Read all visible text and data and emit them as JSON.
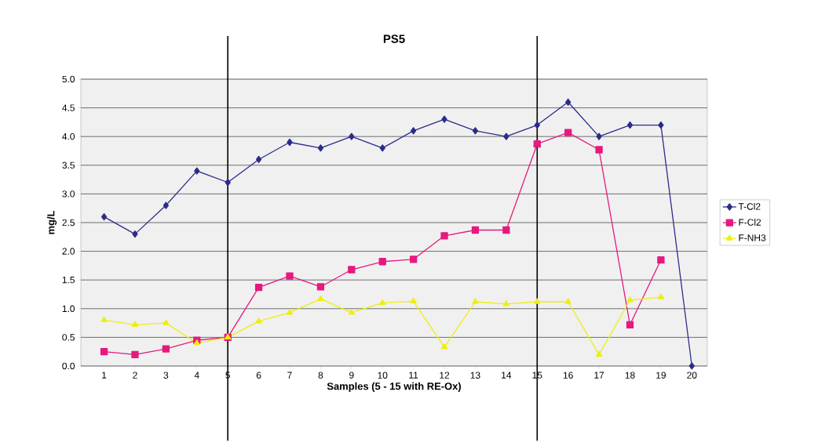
{
  "chart_data": {
    "type": "line",
    "title": "PS5",
    "xlabel": "Samples (5 - 15 with RE-Ox)",
    "ylabel": "mg/L",
    "x": [
      1,
      2,
      3,
      4,
      5,
      6,
      7,
      8,
      9,
      10,
      11,
      12,
      13,
      14,
      15,
      16,
      17,
      18,
      19,
      20
    ],
    "xlim": [
      0.25,
      20.5
    ],
    "xticks": [
      1,
      2,
      3,
      4,
      5,
      6,
      7,
      8,
      9,
      10,
      11,
      12,
      13,
      14,
      15,
      16,
      17,
      18,
      19,
      20
    ],
    "ylim": [
      0,
      5
    ],
    "yticks": [
      {
        "value": 0,
        "label": "0.0"
      },
      {
        "value": 0.5,
        "label": "0.5"
      },
      {
        "value": 1,
        "label": "1.0"
      },
      {
        "value": 1.5,
        "label": "1.5"
      },
      {
        "value": 2,
        "label": "2.0"
      },
      {
        "value": 2.5,
        "label": "2.5"
      },
      {
        "value": 3,
        "label": "3.0"
      },
      {
        "value": 3.5,
        "label": "3.5"
      },
      {
        "value": 4,
        "label": "4.0"
      },
      {
        "value": 4.5,
        "label": "4.5"
      },
      {
        "value": 5,
        "label": "5.0"
      }
    ],
    "grid": "y",
    "legend": "right",
    "ref_lines": [
      {
        "axis": "x",
        "value": 5,
        "color": "#000000"
      },
      {
        "axis": "x",
        "value": 15,
        "color": "#000000"
      }
    ],
    "series": [
      {
        "name": "T-Cl2",
        "color": "#2b2b8c",
        "marker": "diamond",
        "values": [
          2.6,
          2.3,
          2.8,
          3.4,
          3.2,
          3.6,
          3.9,
          3.8,
          4.0,
          3.8,
          4.1,
          4.3,
          4.1,
          4.0,
          4.2,
          4.6,
          4.0,
          4.2,
          4.2,
          0.0
        ]
      },
      {
        "name": "F-Cl2",
        "color": "#e6197f",
        "marker": "square",
        "values": [
          0.25,
          0.2,
          0.3,
          0.45,
          0.5,
          1.37,
          1.57,
          1.38,
          1.68,
          1.82,
          1.86,
          2.27,
          2.37,
          2.37,
          3.87,
          4.07,
          3.77,
          0.72,
          1.85,
          null
        ]
      },
      {
        "name": "F-NH3",
        "color": "#eeee10",
        "marker": "triangle",
        "values": [
          0.8,
          0.72,
          0.75,
          0.4,
          0.5,
          0.78,
          0.93,
          1.17,
          0.93,
          1.1,
          1.13,
          0.33,
          1.12,
          1.08,
          1.12,
          1.12,
          0.2,
          1.15,
          1.2,
          null
        ]
      }
    ]
  }
}
